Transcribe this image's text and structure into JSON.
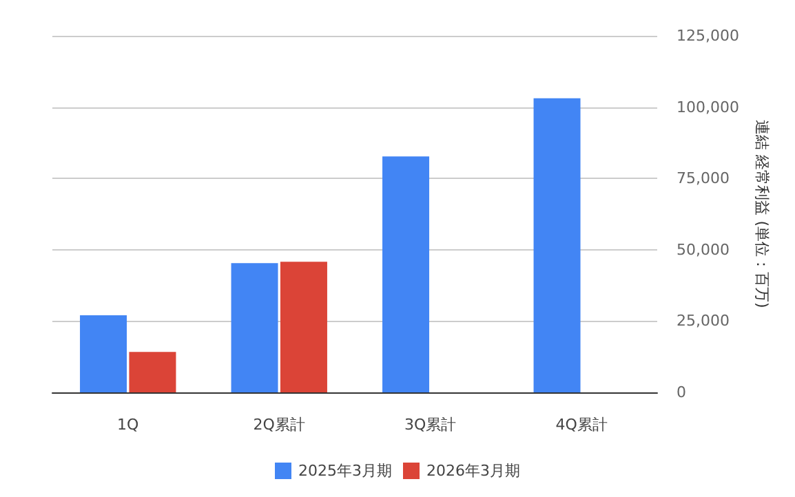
{
  "chart_data": {
    "type": "bar",
    "categories": [
      "1Q",
      "2Q累計",
      "3Q累計",
      "4Q累計"
    ],
    "series": [
      {
        "name": "2025年3月期",
        "color": "#4285f4",
        "values": [
          27000,
          45300,
          82700,
          103100
        ]
      },
      {
        "name": "2026年3月期",
        "color": "#db4437",
        "values": [
          14200,
          45800,
          null,
          null
        ]
      }
    ],
    "ylabel": "連結 経常利益 (単位：百万)",
    "ylim": [
      0,
      125000
    ],
    "yticks": [
      0,
      {
        "value": 25000,
        "label": "25,000"
      },
      {
        "value": 50000,
        "label": "50,000"
      },
      {
        "value": 75000,
        "label": "75,000"
      },
      {
        "value": 100000,
        "label": "100,000"
      },
      {
        "value": 125000,
        "label": "125,000"
      }
    ],
    "grid": "y",
    "legend": "bottom"
  }
}
